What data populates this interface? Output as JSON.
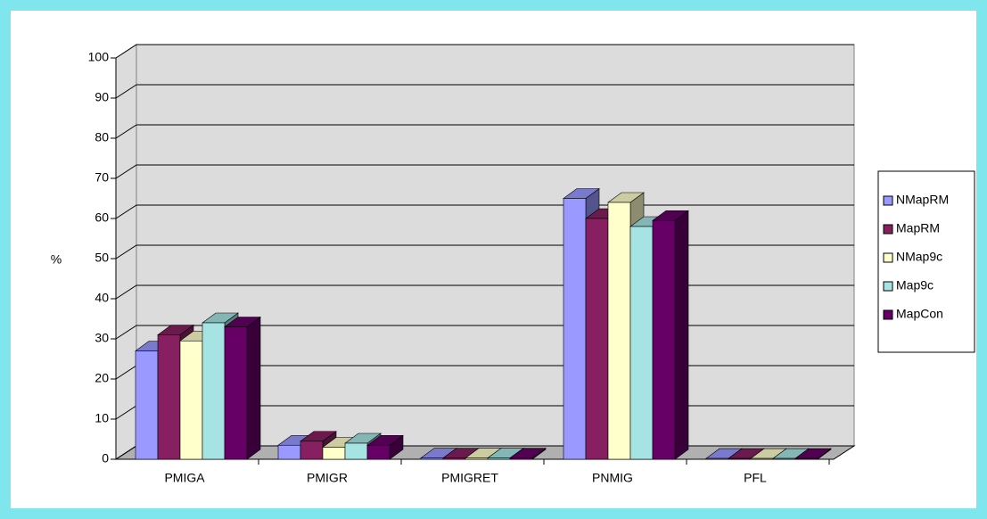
{
  "chart_data": {
    "type": "bar3d",
    "y_label": "%",
    "categories": [
      "PMIGA",
      "PMIGR",
      "PMIGRET",
      "PNMIG",
      "PFL"
    ],
    "series": [
      {
        "name": "NMapRM",
        "color": "#9999ff",
        "values": [
          27,
          3.5,
          0.3,
          65,
          0.2
        ]
      },
      {
        "name": "MapRM",
        "color": "#862060",
        "values": [
          31,
          4.5,
          0.3,
          60,
          0.2
        ]
      },
      {
        "name": "NMap9c",
        "color": "#ffffcc",
        "values": [
          29.5,
          3,
          0.3,
          64,
          0.2
        ]
      },
      {
        "name": "Map9c",
        "color": "#a6e3e3",
        "values": [
          34,
          4,
          0.3,
          58,
          0.2
        ]
      },
      {
        "name": "MapCon",
        "color": "#660066",
        "values": [
          33,
          3.5,
          0.3,
          59.5,
          0.2
        ]
      }
    ],
    "ylim": [
      0,
      100
    ],
    "yticks": [
      0,
      10,
      20,
      30,
      40,
      50,
      60,
      70,
      80,
      90,
      100
    ],
    "grid": true,
    "legend": "right"
  }
}
